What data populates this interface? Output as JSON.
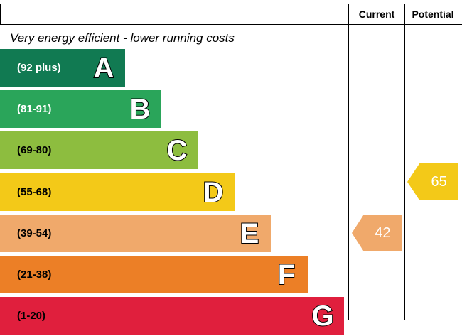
{
  "chart_data": {
    "type": "bar",
    "headers": {
      "current": "Current",
      "potential": "Potential"
    },
    "caption_top": "Very energy efficient - lower running costs",
    "bands": [
      {
        "letter": "A",
        "range": "(92 plus)",
        "color": "#117a52",
        "text_color": "#ffffff"
      },
      {
        "letter": "B",
        "range": "(81-91)",
        "color": "#2aa55a",
        "text_color": "#ffffff"
      },
      {
        "letter": "C",
        "range": "(69-80)",
        "color": "#8dbd3f",
        "text_color": "#000000"
      },
      {
        "letter": "D",
        "range": "(55-68)",
        "color": "#f3c918",
        "text_color": "#000000"
      },
      {
        "letter": "E",
        "range": "(39-54)",
        "color": "#f0a96b",
        "text_color": "#000000"
      },
      {
        "letter": "F",
        "range": "(21-38)",
        "color": "#ec7f26",
        "text_color": "#000000"
      },
      {
        "letter": "G",
        "range": "(1-20)",
        "color": "#e01f3d",
        "text_color": "#000000"
      }
    ],
    "current": {
      "value": 42,
      "band": "E",
      "color": "#f0a96b"
    },
    "potential": {
      "value": 65,
      "band": "D",
      "color": "#f3c918"
    }
  }
}
